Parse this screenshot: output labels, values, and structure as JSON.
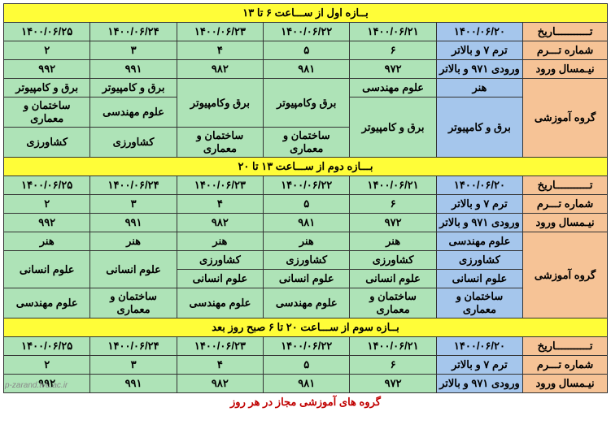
{
  "colors": {
    "yellow": "#fffd38",
    "orange": "#f6c396",
    "blue": "#a5c6ec",
    "green": "#aee3b7",
    "border": "#333333",
    "footer_text": "#c00000",
    "watermark": "#888888"
  },
  "typography": {
    "base_fontsize": 13,
    "font_family": "Tahoma",
    "font_weight": "bold",
    "footer_fontsize": 13,
    "watermark_fontsize": 10
  },
  "labels": {
    "date": "تـــــــــــاریخ",
    "term_no": "شماره تـــرم",
    "entry_sem": "نیـمسال ورود",
    "edu_group": "گروه آموزشی"
  },
  "band1": {
    "title": "بــازه اول از ســـاعت ۶ تا ۱۳",
    "dates": [
      "۱۴۰۰/۰۶/۲۰",
      "۱۴۰۰/۰۶/۲۱",
      "۱۴۰۰/۰۶/۲۲",
      "۱۴۰۰/۰۶/۲۳",
      "۱۴۰۰/۰۶/۲۴",
      "۱۴۰۰/۰۶/۲۵"
    ],
    "terms": [
      "ترم ۷ و بالاتر",
      "۶",
      "۵",
      "۴",
      "۳",
      "۲"
    ],
    "entries": [
      "ورودی ۹۷۱ و بالاتر",
      "۹۷۲",
      "۹۸۱",
      "۹۸۲",
      "۹۹۱",
      "۹۹۲"
    ],
    "groups": {
      "c1": [
        "هنر",
        "برق و کامپیوتر"
      ],
      "c2": [
        "علوم مهندسی",
        "برق و کامپیوتر"
      ],
      "c3": [
        "برق وکامپیوتر",
        "ساختمان و معماری"
      ],
      "c4": [
        "برق وکامپیوتر",
        "ساختمان و معماری"
      ],
      "c5": [
        "برق و کامپیوتر",
        "علوم مهندسی",
        "کشاورزی"
      ],
      "c6": [
        "برق و کامپیوتر",
        "ساختمان و معماری",
        "کشاورزی"
      ]
    }
  },
  "band2": {
    "title": "بـــازه دوم از ســـاعت ۱۳ تا ۲۰",
    "dates": [
      "۱۴۰۰/۰۶/۲۰",
      "۱۴۰۰/۰۶/۲۱",
      "۱۴۰۰/۰۶/۲۲",
      "۱۴۰۰/۰۶/۲۳",
      "۱۴۰۰/۰۶/۲۴",
      "۱۴۰۰/۰۶/۲۵"
    ],
    "terms": [
      "ترم ۷ و بالاتر",
      "۶",
      "۵",
      "۴",
      "۳",
      "۲"
    ],
    "entries": [
      "ورودی ۹۷۱ و بالاتر",
      "۹۷۲",
      "۹۸۱",
      "۹۸۲",
      "۹۹۱",
      "۹۹۲"
    ],
    "groups": {
      "c1": [
        "علوم مهندسی",
        "کشاورزی",
        "علوم انسانی",
        "ساختمان و معماری"
      ],
      "c2": [
        "هنر",
        "کشاورزی",
        "علوم انسانی",
        "ساختمان و معماری"
      ],
      "c3": [
        "هنر",
        "کشاورزی",
        "علوم انسانی",
        "علوم مهندسی"
      ],
      "c4": [
        "هنر",
        "کشاورزی",
        "علوم انسانی",
        "علوم مهندسی"
      ],
      "c5": [
        "هنر",
        "علوم انسانی",
        "ساختمان و معماری"
      ],
      "c6": [
        "هنر",
        "علوم انسانی",
        "علوم مهندسی"
      ]
    }
  },
  "band3": {
    "title": "بــازه سوم از ســـاعت ۲۰ تا ۶ صبح روز بعد",
    "dates": [
      "۱۴۰۰/۰۶/۲۰",
      "۱۴۰۰/۰۶/۲۱",
      "۱۴۰۰/۰۶/۲۲",
      "۱۴۰۰/۰۶/۲۳",
      "۱۴۰۰/۰۶/۲۴",
      "۱۴۰۰/۰۶/۲۵"
    ],
    "terms": [
      "ترم ۷ و بالاتر",
      "۶",
      "۵",
      "۴",
      "۳",
      "۲"
    ],
    "entries": [
      "ورودی ۹۷۱ و بالاتر",
      "۹۷۲",
      "۹۸۱",
      "۹۸۲",
      "۹۹۱",
      "۹۹۲"
    ]
  },
  "footer": "گروه های آموزشی مجاز  در هر روز",
  "watermark": "p-zarand.tvu.ac.ir"
}
